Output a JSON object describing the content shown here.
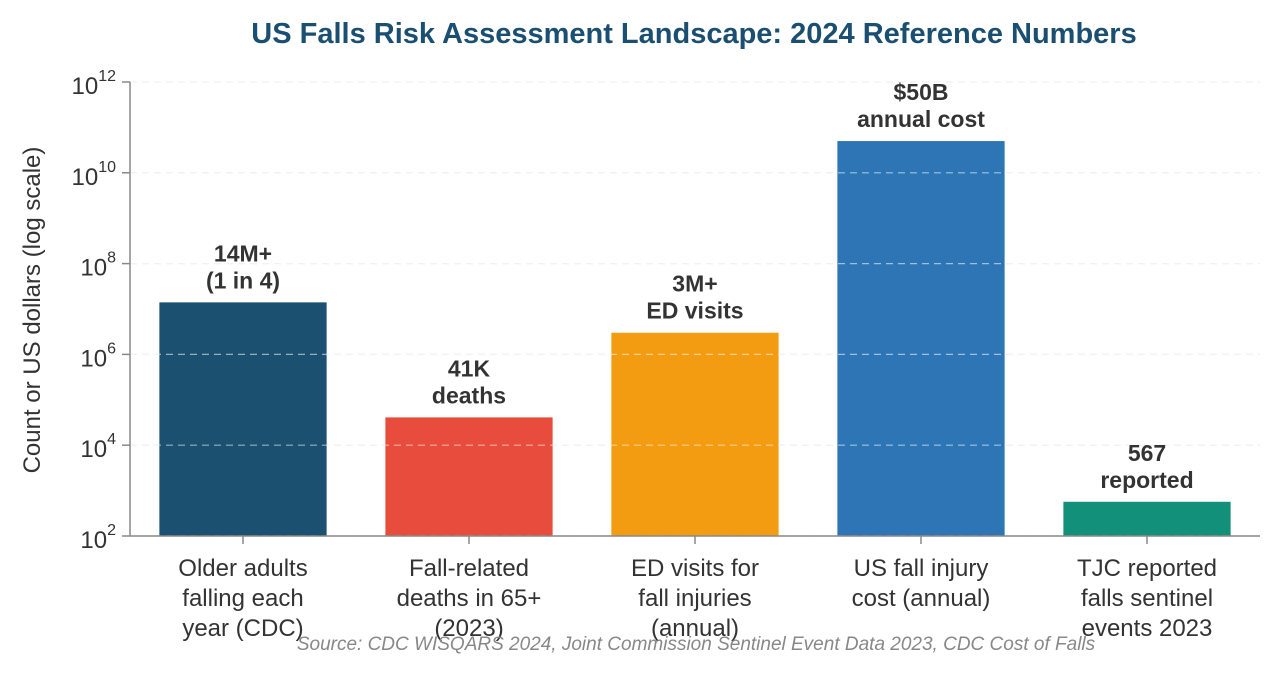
{
  "chart_data": {
    "type": "bar",
    "title": "US Falls Risk Assessment Landscape: 2024 Reference Numbers",
    "ylabel": "Count or US dollars (log scale)",
    "xlabel": "",
    "yscale": "log",
    "ylim": [
      100,
      1000000000000
    ],
    "y_ticks": [
      {
        "base": "10",
        "exp": "2"
      },
      {
        "base": "10",
        "exp": "4"
      },
      {
        "base": "10",
        "exp": "6"
      },
      {
        "base": "10",
        "exp": "8"
      },
      {
        "base": "10",
        "exp": "10"
      },
      {
        "base": "10",
        "exp": "12"
      }
    ],
    "grid": "horizontal dashed",
    "categories": [
      [
        "Older adults",
        "falling each",
        "year (CDC)"
      ],
      [
        "Fall-related",
        "deaths in 65+",
        "(2023)"
      ],
      [
        "ED visits for",
        "fall injuries",
        "(annual)"
      ],
      [
        "US fall injury",
        "cost (annual)"
      ],
      [
        "TJC reported",
        "falls sentinel",
        "events 2023"
      ]
    ],
    "values": [
      14000000,
      41000,
      3000000,
      50000000000,
      567
    ],
    "data_labels": [
      [
        "14M+",
        "(1 in 4)"
      ],
      [
        "41K",
        "deaths"
      ],
      [
        "3M+",
        "ED visits"
      ],
      [
        "$50B",
        "annual cost"
      ],
      [
        "567",
        "reported"
      ]
    ],
    "colors": [
      "#1b5070",
      "#e74c3c",
      "#f39c12",
      "#2e75b6",
      "#13907a"
    ],
    "source": "Source: CDC WISQARS 2024, Joint Commission Sentinel Event Data 2023, CDC Cost of Falls"
  },
  "colors": {
    "title": "#1b4f72",
    "text": "#333333",
    "axis": "#888888",
    "grid": "#cccccc"
  }
}
